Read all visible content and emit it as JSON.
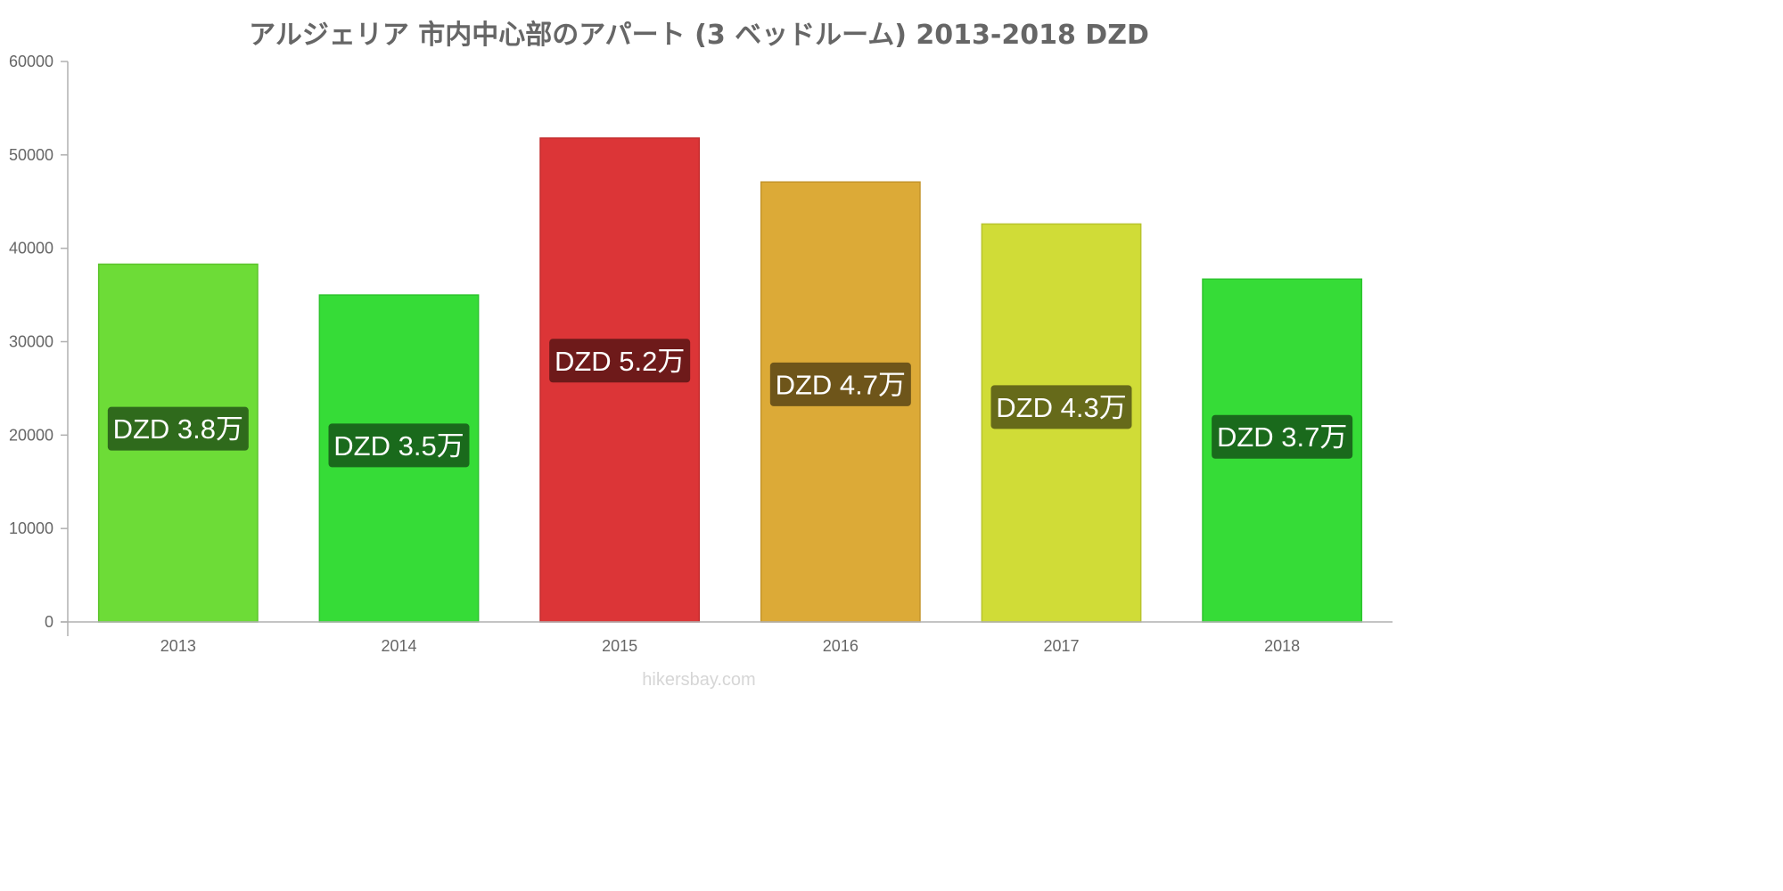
{
  "chart_data": {
    "type": "bar",
    "title": "アルジェリア 市内中心部のアパート (3 ベッドルーム) 2013-2018 DZD",
    "categories": [
      "2013",
      "2014",
      "2015",
      "2016",
      "2017",
      "2018"
    ],
    "values": [
      38300,
      35000,
      51800,
      47100,
      42600,
      36700
    ],
    "value_labels": [
      "DZD 3.8万",
      "DZD 3.5万",
      "DZD 5.2万",
      "DZD 4.7万",
      "DZD 4.3万",
      "DZD 3.7万"
    ],
    "bar_colors": [
      "#6ddc37",
      "#36dc37",
      "#dc3537",
      "#dcaa37",
      "#d0dc37",
      "#36dc37"
    ],
    "bar_border_colors": [
      "#5cc42c",
      "#2cc42d",
      "#c42c2e",
      "#c4952c",
      "#b8c42c",
      "#2cc42d"
    ],
    "label_bg_colors": [
      "#2f6a1c",
      "#1a6a1c",
      "#6e1a1a",
      "#6e551a",
      "#666a1a",
      "#1a6a1c"
    ],
    "y_ticks": [
      "0",
      "10000",
      "20000",
      "30000",
      "40000",
      "50000",
      "60000"
    ],
    "ylim": [
      0,
      60000
    ],
    "xlabel": "",
    "ylabel": "",
    "grid": false,
    "legend": "none"
  },
  "watermark": "hikersbay.com"
}
